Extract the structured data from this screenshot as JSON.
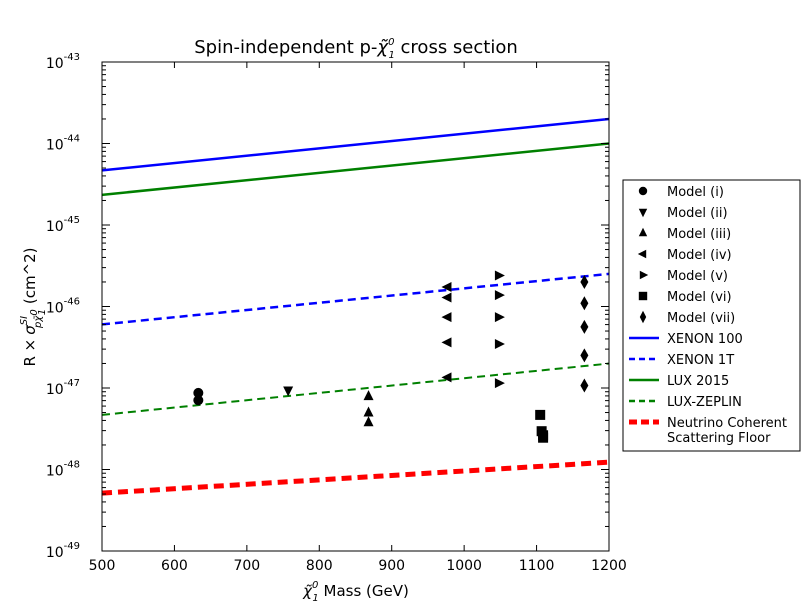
{
  "chart_data": {
    "type": "scatter",
    "title": "Spin-independent p-χ̃₁⁰ cross section",
    "title_parts": {
      "prefix": "Spin-independent p-",
      "symbol": "χ̃",
      "sup": "0",
      "sub": "1",
      "suffix": " cross section"
    },
    "xlabel": "χ̃₁⁰ Mass (GeV)",
    "xlabel_parts": {
      "symbol": "χ̃",
      "sup": "0",
      "sub": "1",
      "suffix": " Mass (GeV)"
    },
    "ylabel": "R × σ^SI_pχ̃₁⁰ (cm^2)",
    "ylabel_parts": {
      "prefix": "R ",
      "times": "×",
      "sigma": "σ",
      "sup": "SI",
      "sub": "pχ̃",
      "sub2": "0",
      "sub3": "1",
      "suffix": " (cm^2)"
    },
    "xlim": [
      500,
      1200
    ],
    "ylim_log10": [
      -49,
      -43
    ],
    "yscale": "log",
    "xticks": [
      {
        "value": 500,
        "label": "500"
      },
      {
        "value": 600,
        "label": "600"
      },
      {
        "value": 700,
        "label": "700"
      },
      {
        "value": 800,
        "label": "800"
      },
      {
        "value": 900,
        "label": "900"
      },
      {
        "value": 1000,
        "label": "1000"
      },
      {
        "value": 1100,
        "label": "1100"
      },
      {
        "value": 1200,
        "label": "1200"
      }
    ],
    "yticks": [
      {
        "exp": -49,
        "base": "10",
        "label": "-49"
      },
      {
        "exp": -48,
        "base": "10",
        "label": "-48"
      },
      {
        "exp": -47,
        "base": "10",
        "label": "-47"
      },
      {
        "exp": -46,
        "base": "10",
        "label": "-46"
      },
      {
        "exp": -45,
        "base": "10",
        "label": "-45"
      },
      {
        "exp": -44,
        "base": "10",
        "label": "-44"
      },
      {
        "exp": -43,
        "base": "10",
        "label": "-43"
      }
    ],
    "legend_position": "outside-right",
    "lines": [
      {
        "name": "XENON 100",
        "color": "#0000ff",
        "style": "solid",
        "width": 2.5,
        "x": [
          500,
          1200
        ],
        "log10_y": [
          -44.33,
          -43.7
        ]
      },
      {
        "name": "XENON 1T",
        "color": "#0000ff",
        "style": "dashed",
        "width": 2.5,
        "x": [
          500,
          1200
        ],
        "log10_y": [
          -46.22,
          -45.6
        ]
      },
      {
        "name": "LUX 2015",
        "color": "#008000",
        "style": "solid",
        "width": 2.5,
        "x": [
          500,
          1200
        ],
        "log10_y": [
          -44.63,
          -44.0
        ]
      },
      {
        "name": "LUX-ZEPLIN",
        "color": "#008000",
        "style": "dashed",
        "width": 2.0,
        "x": [
          500,
          1200
        ],
        "log10_y": [
          -47.33,
          -46.7
        ]
      },
      {
        "name": "Neutrino Coherent Scattering Floor",
        "color": "#ff0000",
        "style": "dashed-thick",
        "width": 5.0,
        "x": [
          500,
          1200
        ],
        "log10_y": [
          -48.29,
          -47.91
        ]
      }
    ],
    "series": [
      {
        "name": "Model (i)",
        "marker": "circle",
        "points": [
          {
            "x": 633,
            "log10_y": -47.06
          },
          {
            "x": 633,
            "log10_y": -47.15
          }
        ]
      },
      {
        "name": "Model (ii)",
        "marker": "triangle-down",
        "points": [
          {
            "x": 757,
            "log10_y": -47.03
          }
        ]
      },
      {
        "name": "Model (iii)",
        "marker": "triangle-up",
        "points": [
          {
            "x": 868,
            "log10_y": -47.1
          },
          {
            "x": 868,
            "log10_y": -47.3
          },
          {
            "x": 868,
            "log10_y": -47.42
          }
        ]
      },
      {
        "name": "Model (iv)",
        "marker": "triangle-left",
        "points": [
          {
            "x": 977,
            "log10_y": -45.76
          },
          {
            "x": 977,
            "log10_y": -45.89
          },
          {
            "x": 977,
            "log10_y": -46.13
          },
          {
            "x": 977,
            "log10_y": -46.44
          },
          {
            "x": 977,
            "log10_y": -46.87
          }
        ]
      },
      {
        "name": "Model (v)",
        "marker": "triangle-right",
        "points": [
          {
            "x": 1048,
            "log10_y": -45.62
          },
          {
            "x": 1048,
            "log10_y": -45.86
          },
          {
            "x": 1048,
            "log10_y": -46.13
          },
          {
            "x": 1048,
            "log10_y": -46.46
          },
          {
            "x": 1048,
            "log10_y": -46.94
          }
        ]
      },
      {
        "name": "Model (vi)",
        "marker": "square",
        "points": [
          {
            "x": 1105,
            "log10_y": -47.33
          },
          {
            "x": 1107,
            "log10_y": -47.53
          },
          {
            "x": 1109,
            "log10_y": -47.58
          },
          {
            "x": 1109,
            "log10_y": -47.61
          }
        ]
      },
      {
        "name": "Model (vii)",
        "marker": "diamond",
        "points": [
          {
            "x": 1166,
            "log10_y": -45.7
          },
          {
            "x": 1166,
            "log10_y": -45.96
          },
          {
            "x": 1166,
            "log10_y": -46.25
          },
          {
            "x": 1166,
            "log10_y": -46.6
          },
          {
            "x": 1166,
            "log10_y": -46.97
          }
        ]
      }
    ],
    "legend": [
      {
        "label": "Model (i)",
        "kind": "marker",
        "marker": "circle"
      },
      {
        "label": "Model (ii)",
        "kind": "marker",
        "marker": "triangle-down"
      },
      {
        "label": "Model (iii)",
        "kind": "marker",
        "marker": "triangle-up"
      },
      {
        "label": "Model (iv)",
        "kind": "marker",
        "marker": "triangle-left"
      },
      {
        "label": "Model (v)",
        "kind": "marker",
        "marker": "triangle-right"
      },
      {
        "label": "Model (vi)",
        "kind": "marker",
        "marker": "square"
      },
      {
        "label": "Model (vii)",
        "kind": "marker",
        "marker": "diamond"
      },
      {
        "label": "XENON 100",
        "kind": "line",
        "color": "#0000ff",
        "style": "solid"
      },
      {
        "label": "XENON 1T",
        "kind": "line",
        "color": "#0000ff",
        "style": "dashed"
      },
      {
        "label": "LUX 2015",
        "kind": "line",
        "color": "#008000",
        "style": "solid"
      },
      {
        "label": "LUX-ZEPLIN",
        "kind": "line",
        "color": "#008000",
        "style": "dashed"
      },
      {
        "label": "Neutrino Coherent\nScattering Floor",
        "lines": [
          "Neutrino Coherent",
          "Scattering Floor"
        ],
        "kind": "line",
        "color": "#ff0000",
        "style": "dashed-thick"
      }
    ]
  }
}
